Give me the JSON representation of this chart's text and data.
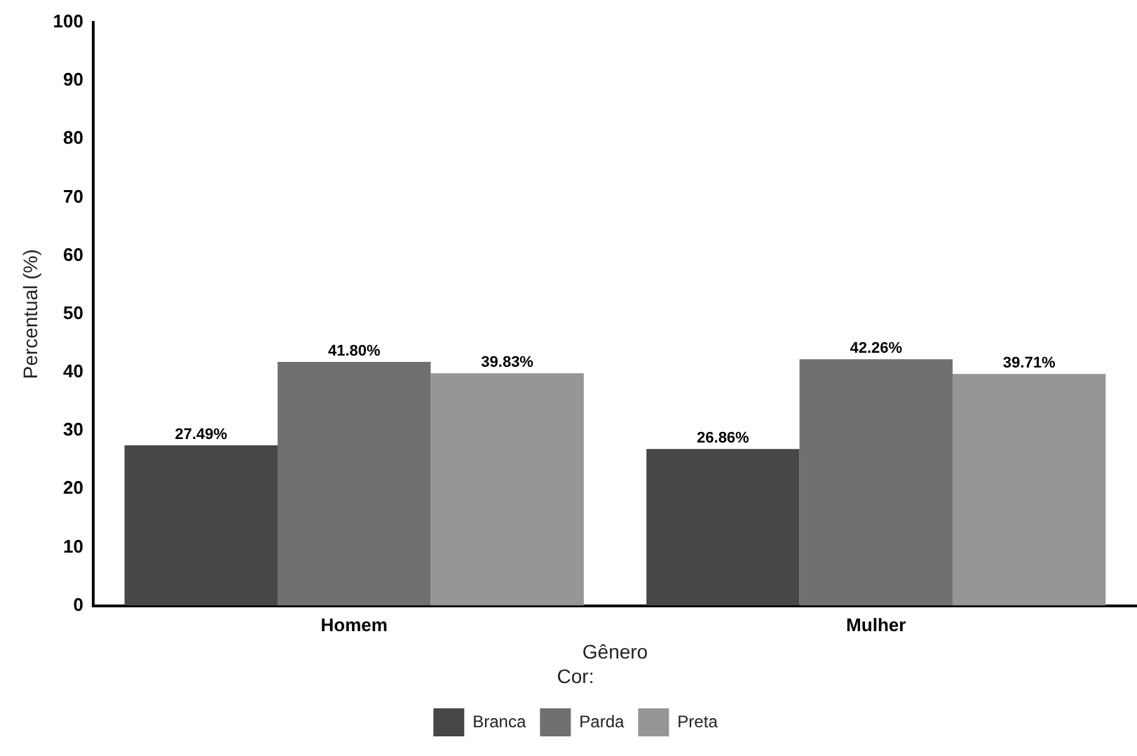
{
  "chart_data": {
    "type": "bar",
    "xlabel": "Gênero",
    "ylabel": "Percentual (%)",
    "legend_title": "Cor:",
    "categories": [
      "Homem",
      "Mulher"
    ],
    "series": [
      {
        "name": "Branca",
        "color": "#474747",
        "values": [
          27.49,
          26.86
        ],
        "value_labels": [
          "27.49%",
          "26.86%"
        ]
      },
      {
        "name": "Parda",
        "color": "#707070",
        "values": [
          41.8,
          42.26
        ],
        "value_labels": [
          "41.80%",
          "42.26%"
        ]
      },
      {
        "name": "Preta",
        "color": "#969696",
        "values": [
          39.83,
          39.71
        ],
        "value_labels": [
          "39.83%",
          "39.71%"
        ]
      }
    ],
    "ylim": [
      0,
      100
    ],
    "yticks": [
      0,
      10,
      20,
      30,
      40,
      50,
      60,
      70,
      80,
      90,
      100
    ],
    "grid": false,
    "legend": "bottom"
  }
}
